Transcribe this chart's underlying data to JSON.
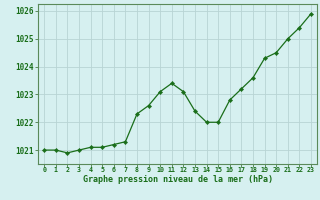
{
  "x": [
    0,
    1,
    2,
    3,
    4,
    5,
    6,
    7,
    8,
    9,
    10,
    11,
    12,
    13,
    14,
    15,
    16,
    17,
    18,
    19,
    20,
    21,
    22,
    23
  ],
  "y": [
    1021.0,
    1021.0,
    1020.9,
    1021.0,
    1021.1,
    1021.1,
    1021.2,
    1021.3,
    1022.3,
    1022.6,
    1023.1,
    1023.4,
    1023.1,
    1022.4,
    1022.0,
    1022.0,
    1022.8,
    1023.2,
    1023.6,
    1024.3,
    1024.5,
    1025.0,
    1025.4,
    1025.9
  ],
  "line_color": "#1a6e1a",
  "marker": "D",
  "marker_size": 2.2,
  "bg_color": "#d6f0f0",
  "grid_color": "#b8d4d4",
  "xlabel": "Graphe pression niveau de la mer (hPa)",
  "xlabel_color": "#1a6e1a",
  "tick_color": "#1a6e1a",
  "spine_color": "#5a8a5a",
  "ylim": [
    1020.5,
    1026.25
  ],
  "xlim": [
    -0.5,
    23.5
  ],
  "yticks": [
    1021,
    1022,
    1023,
    1024,
    1025,
    1026
  ],
  "xticks": [
    0,
    1,
    2,
    3,
    4,
    5,
    6,
    7,
    8,
    9,
    10,
    11,
    12,
    13,
    14,
    15,
    16,
    17,
    18,
    19,
    20,
    21,
    22,
    23
  ],
  "xtick_fontsize": 4.8,
  "ytick_fontsize": 5.5,
  "xlabel_fontsize": 6.0
}
